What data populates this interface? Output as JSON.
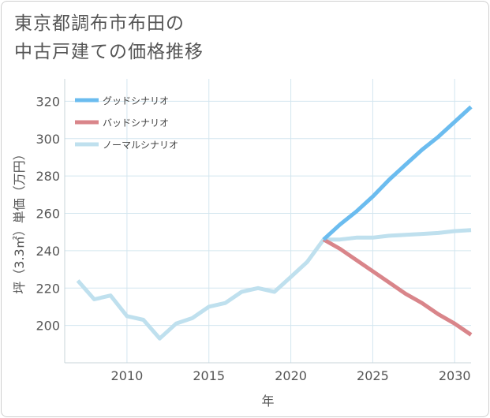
{
  "title_lines": [
    "東京都調布市布田の",
    "中古戸建ての価格推移"
  ],
  "chart_data": {
    "type": "line",
    "title": "東京都調布市布田の中古戸建ての価格推移",
    "xlabel": "年",
    "ylabel": "坪（3.3㎡）単価（万円）",
    "xlim": [
      2006.2,
      2031
    ],
    "ylim": [
      180,
      332
    ],
    "x_ticks": [
      2010,
      2015,
      2020,
      2025,
      2030
    ],
    "y_ticks": [
      200,
      220,
      240,
      260,
      280,
      300,
      320
    ],
    "legend": [
      "グッドシナリオ",
      "バッドシナリオ",
      "ノーマルシナリオ"
    ],
    "series": [
      {
        "name": "グッドシナリオ",
        "color": "#6bbcef",
        "x": [
          2022,
          2023,
          2024,
          2025,
          2026,
          2027,
          2028,
          2029,
          2030,
          2031
        ],
        "values": [
          246,
          254,
          261,
          269,
          278,
          286,
          294,
          301,
          309,
          317
        ]
      },
      {
        "name": "バッドシナリオ",
        "color": "#d9858a",
        "x": [
          2022,
          2023,
          2024,
          2025,
          2026,
          2027,
          2028,
          2029,
          2030,
          2031
        ],
        "values": [
          246,
          241,
          235,
          229,
          223,
          217,
          212,
          206,
          201,
          195
        ]
      },
      {
        "name": "ノーマルシナリオ",
        "color": "#bfe0ee",
        "x": [
          2007,
          2008,
          2009,
          2010,
          2011,
          2012,
          2013,
          2014,
          2015,
          2016,
          2017,
          2018,
          2019,
          2020,
          2021,
          2022,
          2023,
          2024,
          2025,
          2026,
          2027,
          2028,
          2029,
          2030,
          2031
        ],
        "values": [
          224,
          214,
          216,
          205,
          203,
          193,
          201,
          204,
          210,
          212,
          218,
          220,
          218,
          226,
          234,
          246,
          246,
          247,
          247,
          248,
          248.5,
          249,
          249.5,
          250.5,
          251
        ]
      }
    ]
  }
}
